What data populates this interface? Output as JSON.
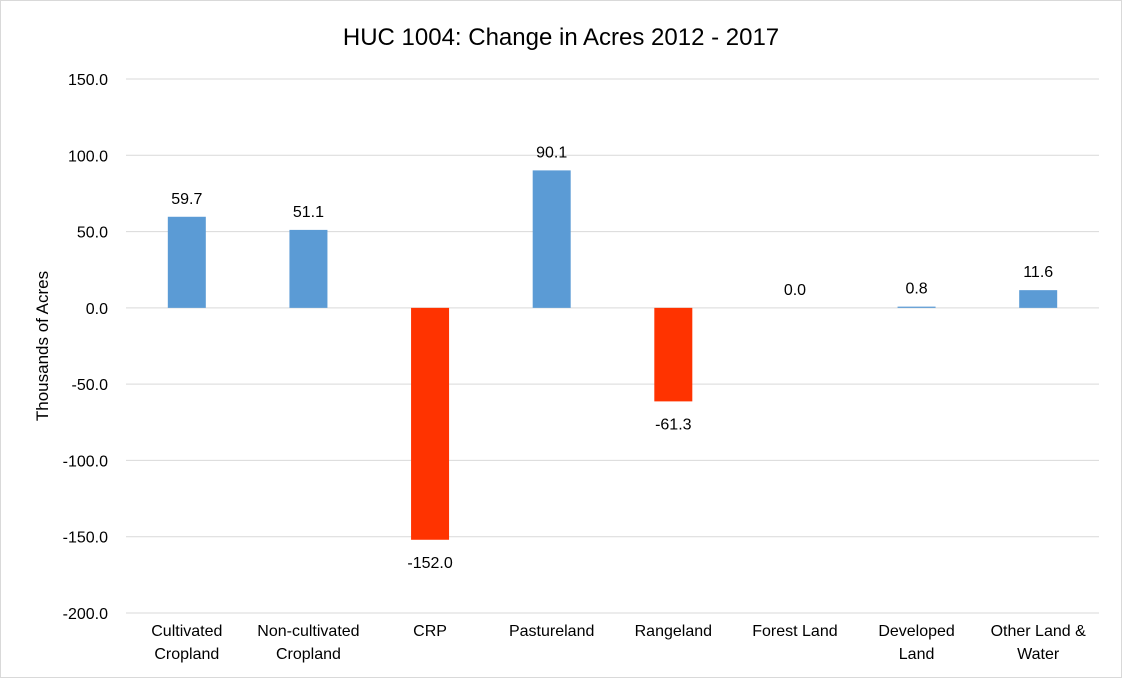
{
  "chart_data": {
    "type": "bar",
    "title": "HUC 1004: Change in Acres 2012 - 2017",
    "xlabel": "",
    "ylabel": "Thousands of Acres",
    "ylim": [
      -200,
      150
    ],
    "yticks": [
      150,
      100,
      50,
      0,
      -50,
      -100,
      -150,
      -200
    ],
    "ytick_labels": [
      "150.0",
      "100.0",
      "50.0",
      "0.0",
      "-50.0",
      "-100.0",
      "-150.0",
      "-200.0"
    ],
    "grid": true,
    "legend": "none",
    "categories": [
      [
        "Cultivated",
        "Cropland"
      ],
      [
        "Non-cultivated",
        "Cropland"
      ],
      [
        "CRP"
      ],
      [
        "Pastureland"
      ],
      [
        "Rangeland"
      ],
      [
        "Forest Land"
      ],
      [
        "Developed",
        "Land"
      ],
      [
        "Other Land &",
        "Water"
      ]
    ],
    "values": [
      59.7,
      51.1,
      -152.0,
      90.1,
      -61.3,
      0.0,
      0.8,
      11.6
    ],
    "data_labels": [
      "59.7",
      "51.1",
      "-152.0",
      "90.1",
      "-61.3",
      "0.0",
      "0.8",
      "11.6"
    ],
    "colors": {
      "positive": "#5b9bd5",
      "negative": "#ff3300",
      "grid": "#d9d9d9",
      "border": "#d9d9d9"
    }
  }
}
